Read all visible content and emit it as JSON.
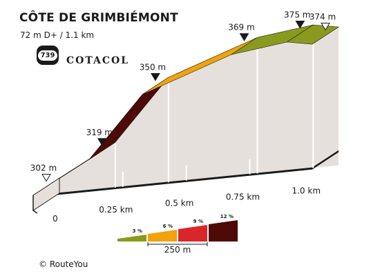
{
  "header": {
    "title": "CÔTE DE GRIMBIÉMONT",
    "subtitle": "72 m D+ / 1.1 km",
    "badge_number": "739",
    "brand": "COTACOL"
  },
  "footer": {
    "copyright": "© RouteYou"
  },
  "colors": {
    "grade_3": "#8a9a1e",
    "grade_6": "#f0a30a",
    "grade_9": "#d9262b",
    "grade_12": "#4d0a06",
    "side_face": "#e6e0dc",
    "bottom_face": "#d0d0d0"
  },
  "chart_data": {
    "type": "area",
    "title": "CÔTE DE GRIMBIÉMONT",
    "subtitle": "72 m D+ / 1.1 km",
    "x_unit": "km",
    "y_unit": "m",
    "points": [
      {
        "km": 0.0,
        "elev": 302,
        "label": "302 m",
        "marker": "open"
      },
      {
        "km": 0.22,
        "elev": 319,
        "label": "319 m",
        "marker": "filled"
      },
      {
        "km": 0.43,
        "elev": 350,
        "label": "350 m",
        "marker": "filled"
      },
      {
        "km": 0.78,
        "elev": 369,
        "label": "369 m",
        "marker": "filled"
      },
      {
        "km": 1.0,
        "elev": 375,
        "label": "375 m",
        "marker": "filled"
      },
      {
        "km": 1.1,
        "elev": 374,
        "label": "374 m",
        "marker": "open"
      }
    ],
    "segments": [
      {
        "from_km": 0.0,
        "to_km": 0.22,
        "grade_class": 6
      },
      {
        "from_km": 0.22,
        "to_km": 0.43,
        "grade_class": 12
      },
      {
        "from_km": 0.43,
        "to_km": 0.78,
        "grade_class": 6
      },
      {
        "from_km": 0.78,
        "to_km": 1.0,
        "grade_class": 3
      },
      {
        "from_km": 1.0,
        "to_km": 1.1,
        "grade_class": 3
      }
    ],
    "x_ticks": [
      {
        "km": 0.0,
        "label": "0"
      },
      {
        "km": 0.25,
        "label": "0.25 km"
      },
      {
        "km": 0.5,
        "label": "0.5 km"
      },
      {
        "km": 0.75,
        "label": "0.75 km"
      },
      {
        "km": 1.0,
        "label": "1.0 km"
      }
    ],
    "xlim": [
      0,
      1.1
    ],
    "legend": {
      "placement": "bottom",
      "items": [
        {
          "label": "3 %",
          "grade_class": 3
        },
        {
          "label": "6 %",
          "grade_class": 6
        },
        {
          "label": "9 %",
          "grade_class": 9
        },
        {
          "label": "12 %",
          "grade_class": 12
        }
      ],
      "scale_label": "250 m"
    }
  }
}
